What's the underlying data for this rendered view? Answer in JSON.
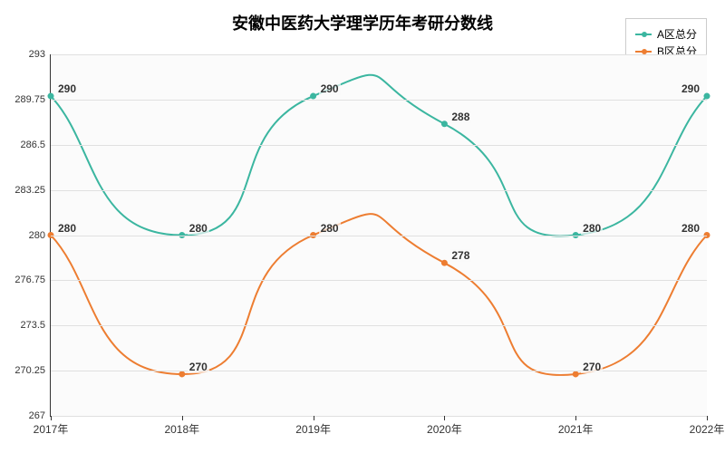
{
  "chart": {
    "type": "line-spline",
    "title": "安徽中医药大学理学历年考研分数线",
    "title_fontsize": 18,
    "background_color": "#ffffff",
    "plot_background": "#fbfbfb",
    "grid_color": "#e0e0e0",
    "axis_color": "#333333",
    "label_fontsize": 12,
    "ylim": [
      267,
      293
    ],
    "ytick_step": 3.25,
    "yticks": [
      267,
      270.25,
      273.5,
      276.75,
      280,
      283.25,
      286.5,
      289.75,
      293
    ],
    "categories": [
      "2017年",
      "2018年",
      "2019年",
      "2020年",
      "2021年",
      "2022年"
    ],
    "series": [
      {
        "name": "A区总分",
        "color": "#3bb6a0",
        "marker": "circle",
        "line_width": 2,
        "values": [
          290,
          280,
          290,
          288,
          280,
          290
        ]
      },
      {
        "name": "B区总分",
        "color": "#ed7d31",
        "marker": "circle",
        "line_width": 2,
        "values": [
          280,
          270,
          280,
          278,
          270,
          280
        ]
      }
    ]
  }
}
